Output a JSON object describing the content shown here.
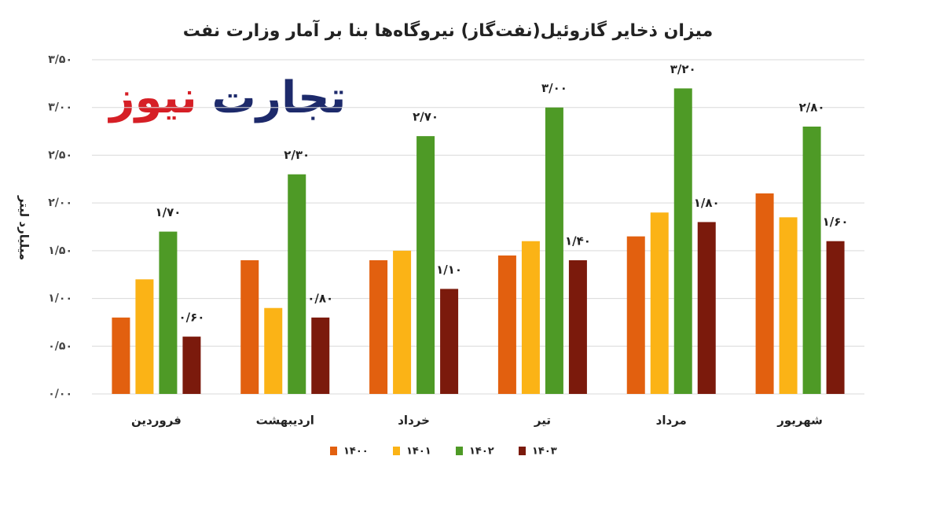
{
  "chart_data": {
    "type": "bar",
    "title": "میزان ذخایر گازوئیل(نفت‌گاز) نیروگاه‌ها بنا بر آمار وزارت نفت",
    "y_label": "میلیارد لیتر",
    "categories": [
      "فروردین",
      "اردیبهشت",
      "خرداد",
      "تیر",
      "مرداد",
      "شهریور"
    ],
    "series": [
      {
        "name": "۱۴۰۰",
        "color": "#e2600f",
        "values": [
          0.8,
          1.4,
          1.4,
          1.45,
          1.65,
          2.1
        ]
      },
      {
        "name": "۱۴۰۱",
        "color": "#fbb316",
        "values": [
          1.2,
          0.9,
          1.5,
          1.6,
          1.9,
          1.85
        ]
      },
      {
        "name": "۱۴۰۲",
        "color": "#4e9a26",
        "values": [
          1.7,
          2.3,
          2.7,
          3.0,
          3.2,
          2.8
        ],
        "value_labels": [
          "۱/۷۰",
          "۲/۳۰",
          "۲/۷۰",
          "۳/۰۰",
          "۳/۲۰",
          "۲/۸۰"
        ]
      },
      {
        "name": "۱۴۰۳",
        "color": "#7b1a0c",
        "values": [
          0.6,
          0.8,
          1.1,
          1.4,
          1.8,
          1.6
        ],
        "value_labels": [
          "۰/۶۰",
          "۰/۸۰",
          "۱/۱۰",
          "۱/۴۰",
          "۱/۸۰",
          "۱/۶۰"
        ]
      }
    ],
    "ylim": [
      0,
      3.5
    ],
    "yticks": [
      {
        "value": 0,
        "label": "۰/۰۰"
      },
      {
        "value": 0.5,
        "label": "۰/۵۰"
      },
      {
        "value": 1,
        "label": "۱/۰۰"
      },
      {
        "value": 1.5,
        "label": "۱/۵۰"
      },
      {
        "value": 2,
        "label": "۲/۰۰"
      },
      {
        "value": 2.5,
        "label": "۲/۵۰"
      },
      {
        "value": 3,
        "label": "۳/۰۰"
      },
      {
        "value": 3.5,
        "label": "۳/۵۰"
      }
    ],
    "grid": true,
    "legend": "bottom"
  },
  "logo": {
    "left": "نیوز",
    "right": "تجارت"
  }
}
